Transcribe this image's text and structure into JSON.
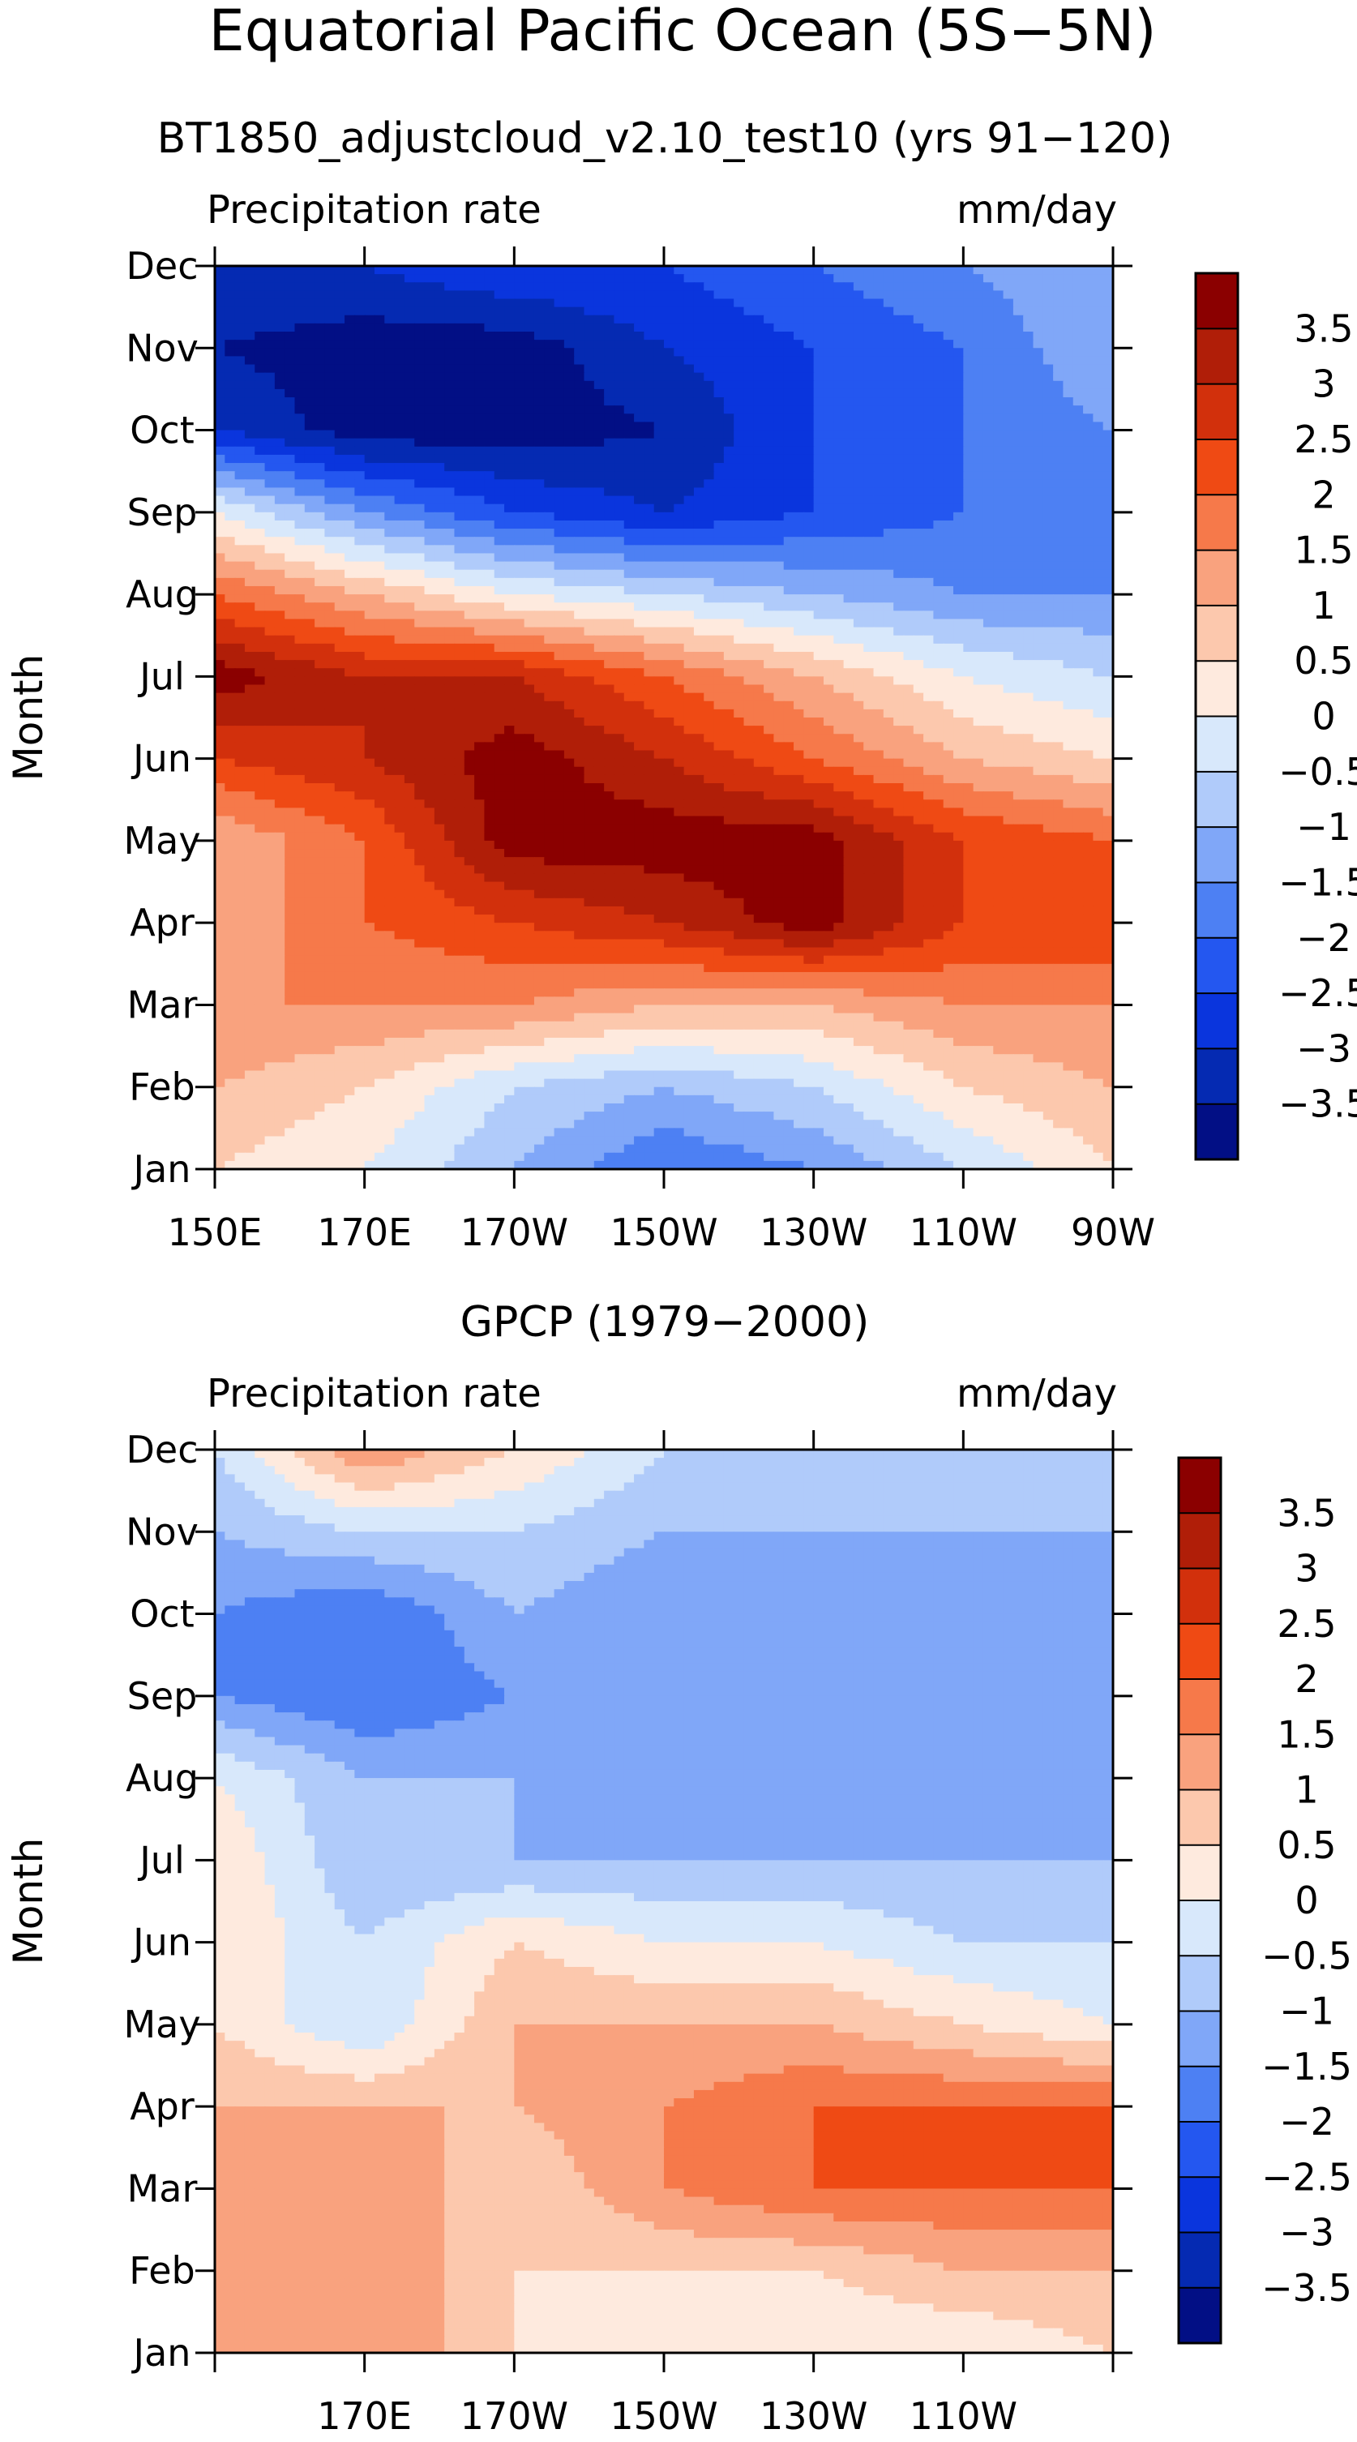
{
  "main_title": "Equatorial Pacific Ocean (5S−5N)",
  "colorbar": {
    "levels": [
      "3.5",
      "3",
      "2.5",
      "2",
      "1.5",
      "1",
      "0.5",
      "0",
      "−0.5",
      "−1",
      "−1.5",
      "−2",
      "−2.5",
      "−3",
      "−3.5"
    ],
    "colors": [
      "#8b0000",
      "#b01e08",
      "#d2300c",
      "#ef4a14",
      "#f6794a",
      "#f9a27e",
      "#fcc8ad",
      "#feeade",
      "#d8e8fb",
      "#b0cbfa",
      "#80a7f8",
      "#4d80f3",
      "#2457f0",
      "#0a35dd",
      "#052ab2",
      "#020f85"
    ]
  },
  "chart_data": [
    {
      "type": "heatmap",
      "title": "BT1850_adjustcloud_v2.10_test10 (yrs 91−120)",
      "variable_label": "Precipitation rate",
      "units": "mm/day",
      "ylabel": "Month",
      "xlabel": "",
      "x_values": [
        150,
        170,
        190,
        210,
        230,
        250,
        270
      ],
      "xticks": [
        "150E",
        "170E",
        "170W",
        "150W",
        "130W",
        "110W",
        "90W"
      ],
      "months": [
        "Jan",
        "Feb",
        "Mar",
        "Apr",
        "May",
        "Jun",
        "Jul",
        "Aug",
        "Sep",
        "Oct",
        "Nov",
        "Dec"
      ],
      "anomaly": [
        [
          0.5,
          0.0,
          -1.0,
          -2.0,
          -1.5,
          -0.5,
          0.5
        ],
        [
          1.0,
          0.5,
          -0.5,
          -1.0,
          -0.5,
          0.5,
          1.0
        ],
        [
          1.5,
          1.5,
          1.5,
          1.0,
          1.0,
          1.5,
          1.5
        ],
        [
          1.0,
          2.0,
          2.5,
          3.0,
          3.8,
          2.5,
          2.5
        ],
        [
          1.0,
          2.0,
          3.8,
          3.8,
          3.8,
          2.5,
          2.0
        ],
        [
          2.5,
          3.0,
          3.8,
          3.0,
          2.0,
          1.0,
          0.5
        ],
        [
          3.8,
          3.0,
          3.0,
          2.0,
          1.0,
          0.0,
          -0.5
        ],
        [
          2.0,
          1.0,
          0.0,
          -0.5,
          -1.0,
          -1.5,
          -1.5
        ],
        [
          0.0,
          -1.5,
          -2.5,
          -3.0,
          -2.5,
          -2.0,
          -1.5
        ],
        [
          -3.0,
          -3.8,
          -3.8,
          -3.5,
          -2.5,
          -2.0,
          -1.5
        ],
        [
          -3.5,
          -3.8,
          -3.8,
          -3.0,
          -2.5,
          -2.0,
          -1.0
        ],
        [
          -3.0,
          -3.0,
          -2.5,
          -2.5,
          -2.0,
          -1.5,
          -1.0
        ]
      ]
    },
    {
      "type": "heatmap",
      "title": "GPCP (1979−2000)",
      "variable_label": "Precipitation rate",
      "units": "mm/day",
      "ylabel": "Month",
      "xlabel": "",
      "x_values": [
        150,
        170,
        190,
        210,
        230,
        250,
        270
      ],
      "xticks": [
        "",
        "170E",
        "170W",
        "150W",
        "130W",
        "110W",
        ""
      ],
      "months": [
        "Jan",
        "Feb",
        "Mar",
        "Apr",
        "May",
        "Jun",
        "Jul",
        "Aug",
        "Sep",
        "Oct",
        "Nov",
        "Dec"
      ],
      "anomaly": [
        [
          1.0,
          1.5,
          0.5,
          0.0,
          0.0,
          0.0,
          0.5
        ],
        [
          1.0,
          1.5,
          0.5,
          0.5,
          0.5,
          1.0,
          1.0
        ],
        [
          1.0,
          1.5,
          0.5,
          1.5,
          2.0,
          2.0,
          2.0
        ],
        [
          1.0,
          1.0,
          1.0,
          1.5,
          2.0,
          2.0,
          2.0
        ],
        [
          0.5,
          -0.5,
          1.0,
          1.0,
          1.0,
          0.5,
          0.0
        ],
        [
          0.5,
          -0.5,
          0.5,
          0.0,
          0.0,
          -0.5,
          -0.5
        ],
        [
          0.5,
          -1.0,
          -1.0,
          -1.0,
          -1.0,
          -1.0,
          -1.0
        ],
        [
          0.0,
          -1.0,
          -1.0,
          -1.5,
          -1.5,
          -1.0,
          -1.5
        ],
        [
          -1.5,
          -2.0,
          -1.5,
          -1.5,
          -1.5,
          -1.0,
          -1.5
        ],
        [
          -1.5,
          -2.0,
          -1.0,
          -1.5,
          -1.5,
          -1.0,
          -1.5
        ],
        [
          -1.0,
          -0.5,
          -0.5,
          -1.0,
          -1.0,
          -1.0,
          -1.0
        ],
        [
          -0.5,
          1.5,
          0.5,
          -0.5,
          -1.0,
          -1.0,
          -1.0
        ]
      ]
    }
  ]
}
